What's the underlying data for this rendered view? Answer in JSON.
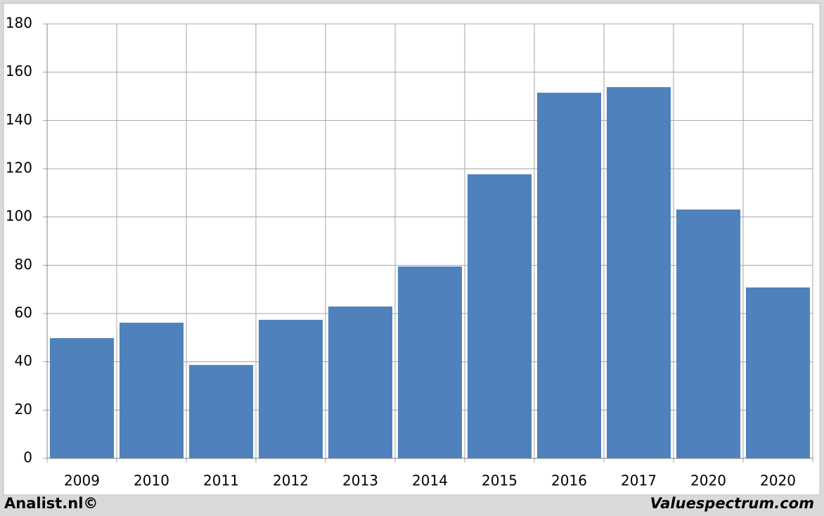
{
  "chart_data": {
    "type": "bar",
    "categories": [
      "2009",
      "2010",
      "2011",
      "2012",
      "2013",
      "2014",
      "2015",
      "2016",
      "2017",
      "2020",
      "2020"
    ],
    "values": [
      49.8,
      56.2,
      38.7,
      57.4,
      62.9,
      79.5,
      117.7,
      151.5,
      153.8,
      103.1,
      70.8
    ],
    "color": "#4f81bd",
    "ylim": [
      0,
      180
    ],
    "yticks": [
      0,
      20,
      40,
      60,
      80,
      100,
      120,
      140,
      160,
      180
    ],
    "grid": true,
    "source_left": "Analist.nl©",
    "source_right": "Valuespectrum.com"
  }
}
